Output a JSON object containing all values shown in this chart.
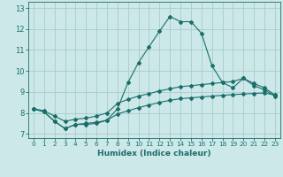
{
  "xlabel": "Humidex (Indice chaleur)",
  "bg_color": "#cce8e8",
  "grid_color": "#aacccc",
  "line_color": "#1a6e6a",
  "xlim": [
    -0.5,
    23.5
  ],
  "ylim": [
    6.8,
    13.3
  ],
  "yticks": [
    7,
    8,
    9,
    10,
    11,
    12,
    13
  ],
  "xticks": [
    0,
    1,
    2,
    3,
    4,
    5,
    6,
    7,
    8,
    9,
    10,
    11,
    12,
    13,
    14,
    15,
    16,
    17,
    18,
    19,
    20,
    21,
    22,
    23
  ],
  "curve1_x": [
    0,
    1,
    2,
    3,
    4,
    5,
    6,
    7,
    8,
    9,
    10,
    11,
    12,
    13,
    14,
    15,
    16,
    17,
    18,
    19,
    20,
    21,
    22,
    23
  ],
  "curve1_y": [
    8.2,
    8.05,
    7.6,
    7.25,
    7.45,
    7.45,
    7.5,
    7.65,
    8.2,
    9.45,
    10.4,
    11.15,
    11.9,
    12.6,
    12.35,
    12.35,
    11.8,
    10.25,
    9.45,
    9.2,
    9.65,
    9.3,
    9.1,
    8.8
  ],
  "curve2_x": [
    0,
    1,
    2,
    3,
    4,
    5,
    6,
    7,
    8,
    9,
    10,
    11,
    12,
    13,
    14,
    15,
    16,
    17,
    18,
    19,
    20,
    21,
    22,
    23
  ],
  "curve2_y": [
    8.2,
    8.1,
    7.85,
    7.6,
    7.7,
    7.75,
    7.85,
    8.0,
    8.45,
    8.65,
    8.8,
    8.92,
    9.05,
    9.15,
    9.25,
    9.3,
    9.35,
    9.4,
    9.45,
    9.5,
    9.65,
    9.4,
    9.2,
    8.85
  ],
  "curve3_x": [
    0,
    1,
    2,
    3,
    4,
    5,
    6,
    7,
    8,
    9,
    10,
    11,
    12,
    13,
    14,
    15,
    16,
    17,
    18,
    19,
    20,
    21,
    22,
    23
  ],
  "curve3_y": [
    8.2,
    8.05,
    7.6,
    7.25,
    7.45,
    7.5,
    7.55,
    7.65,
    7.95,
    8.1,
    8.25,
    8.38,
    8.5,
    8.6,
    8.68,
    8.72,
    8.76,
    8.8,
    8.84,
    8.87,
    8.9,
    8.93,
    8.95,
    8.85
  ]
}
